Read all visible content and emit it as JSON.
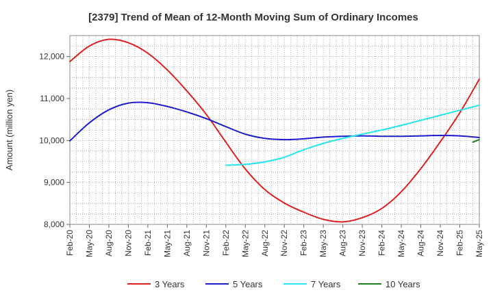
{
  "chart_data": {
    "type": "line",
    "title": "[2379]  Trend of Mean of 12-Month Moving Sum of Ordinary Incomes",
    "xlabel": "",
    "ylabel": "Amount (million yen)",
    "ylim": [
      8000,
      12500
    ],
    "yticks": [
      8000,
      9000,
      10000,
      11000,
      12000
    ],
    "ytick_labels": [
      "8,000",
      "9,000",
      "10,000",
      "11,000",
      "12,000"
    ],
    "x_index_range": [
      0,
      63
    ],
    "xtick_labels": [
      "Feb-20",
      "May-20",
      "Aug-20",
      "Nov-20",
      "Feb-21",
      "May-21",
      "Aug-21",
      "Nov-21",
      "Feb-22",
      "May-22",
      "Aug-22",
      "Nov-22",
      "Feb-23",
      "May-23",
      "Aug-23",
      "Nov-23",
      "Feb-24",
      "May-24",
      "Aug-24",
      "Nov-24",
      "Feb-25",
      "May-25"
    ],
    "grid": true,
    "legend_position": "bottom",
    "series": [
      {
        "name": "3 Years",
        "color": "#e01e1e",
        "points": [
          [
            0,
            11880
          ],
          [
            3,
            12250
          ],
          [
            6,
            12410
          ],
          [
            9,
            12330
          ],
          [
            12,
            12080
          ],
          [
            15,
            11680
          ],
          [
            18,
            11180
          ],
          [
            21,
            10620
          ],
          [
            24,
            9960
          ],
          [
            27,
            9320
          ],
          [
            30,
            8830
          ],
          [
            33,
            8510
          ],
          [
            36,
            8290
          ],
          [
            39,
            8120
          ],
          [
            42,
            8060
          ],
          [
            45,
            8160
          ],
          [
            48,
            8380
          ],
          [
            51,
            8780
          ],
          [
            54,
            9330
          ],
          [
            57,
            9970
          ],
          [
            60,
            10660
          ],
          [
            63,
            11460
          ]
        ]
      },
      {
        "name": "5 Years",
        "color": "#1c1ccf",
        "points": [
          [
            0,
            9990
          ],
          [
            3,
            10420
          ],
          [
            6,
            10730
          ],
          [
            9,
            10890
          ],
          [
            12,
            10900
          ],
          [
            15,
            10810
          ],
          [
            18,
            10680
          ],
          [
            21,
            10520
          ],
          [
            24,
            10330
          ],
          [
            27,
            10150
          ],
          [
            30,
            10050
          ],
          [
            33,
            10020
          ],
          [
            36,
            10040
          ],
          [
            39,
            10080
          ],
          [
            42,
            10100
          ],
          [
            45,
            10110
          ],
          [
            48,
            10100
          ],
          [
            51,
            10100
          ],
          [
            54,
            10110
          ],
          [
            57,
            10120
          ],
          [
            60,
            10110
          ],
          [
            63,
            10070
          ]
        ]
      },
      {
        "name": "7 Years",
        "color": "#22e5ee",
        "points": [
          [
            24,
            9410
          ],
          [
            27,
            9430
          ],
          [
            30,
            9490
          ],
          [
            33,
            9600
          ],
          [
            36,
            9780
          ],
          [
            39,
            9930
          ],
          [
            42,
            10050
          ],
          [
            45,
            10150
          ],
          [
            48,
            10250
          ],
          [
            51,
            10360
          ],
          [
            54,
            10480
          ],
          [
            57,
            10600
          ],
          [
            60,
            10720
          ],
          [
            63,
            10840
          ]
        ]
      },
      {
        "name": "10 Years",
        "color": "#1e7d1e",
        "points": [
          [
            62,
            9960
          ],
          [
            63,
            10020
          ]
        ]
      }
    ]
  }
}
